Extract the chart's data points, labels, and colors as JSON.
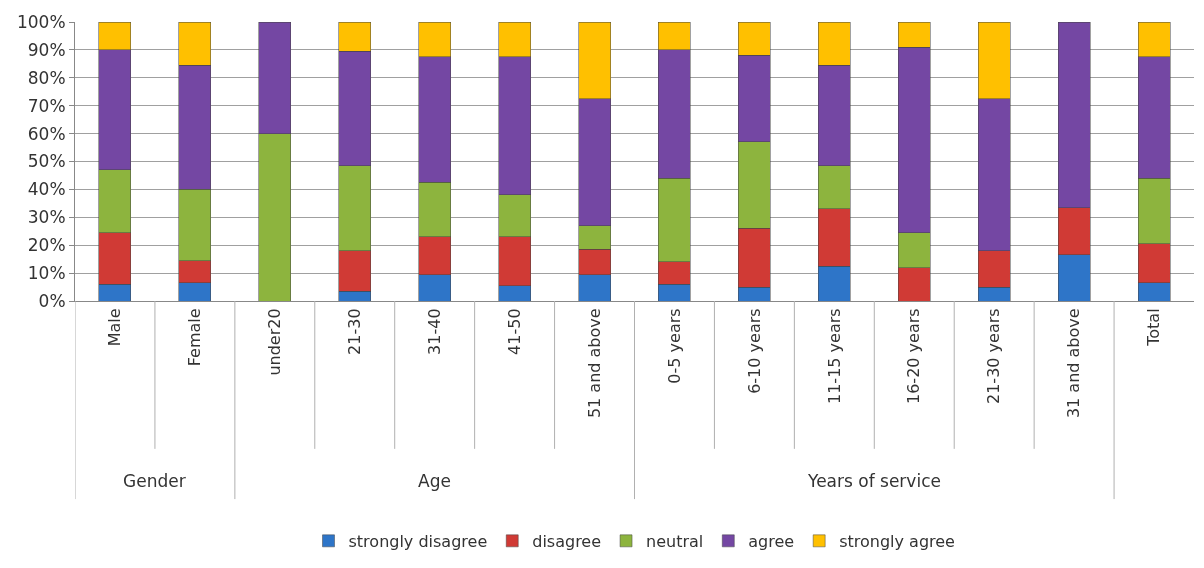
{
  "chart_data": {
    "type": "bar",
    "stacked": true,
    "categories": [
      "Male",
      "Female",
      "under20",
      "21-30",
      "31-40",
      "41-50",
      "51 and above",
      "0-5 years",
      "6-10 years",
      "11-15 years",
      "16-20 years",
      "21-30 years",
      "31 and above",
      "Total"
    ],
    "series": [
      {
        "name": "strongly disagree",
        "color": "#2e75c8",
        "values": [
          6,
          6.5,
          0,
          3.5,
          9.5,
          5.5,
          9.5,
          6,
          5,
          12.5,
          0,
          5,
          16.5,
          6.5
        ]
      },
      {
        "name": "disagree",
        "color": "#d03a35",
        "values": [
          18.5,
          8,
          0,
          14.5,
          13.5,
          17.5,
          9,
          8,
          21,
          20.5,
          12,
          13,
          17,
          14
        ]
      },
      {
        "name": "neutral",
        "color": "#8db43e",
        "values": [
          22.5,
          25.5,
          60,
          30.5,
          19.5,
          15,
          8.5,
          30,
          31,
          15.5,
          12.5,
          0,
          0,
          23.5
        ]
      },
      {
        "name": "agree",
        "color": "#7447a3",
        "values": [
          43,
          44.5,
          40,
          41,
          45,
          49.5,
          45.5,
          46,
          31,
          36,
          66.5,
          54.5,
          66.5,
          43.5
        ]
      },
      {
        "name": "strongly agree",
        "color": "#ffc000",
        "values": [
          10,
          15.5,
          0,
          10.5,
          12.5,
          12.5,
          27.5,
          10,
          12,
          15.5,
          9,
          27.5,
          0,
          12.5
        ]
      }
    ],
    "ylim": [
      0,
      100
    ],
    "yticks": [
      {
        "value": 0,
        "label": "0%"
      },
      {
        "value": 10,
        "label": "10%"
      },
      {
        "value": 20,
        "label": "20%"
      },
      {
        "value": 30,
        "label": "30%"
      },
      {
        "value": 40,
        "label": "40%"
      },
      {
        "value": 50,
        "label": "50%"
      },
      {
        "value": 60,
        "label": "60%"
      },
      {
        "value": 70,
        "label": "70%"
      },
      {
        "value": 80,
        "label": "80%"
      },
      {
        "value": 90,
        "label": "90%"
      },
      {
        "value": 100,
        "label": "100%"
      }
    ],
    "annotations": [
      "Gender",
      "Age",
      "Years of service"
    ],
    "grid": "y",
    "legend": "bottom"
  }
}
